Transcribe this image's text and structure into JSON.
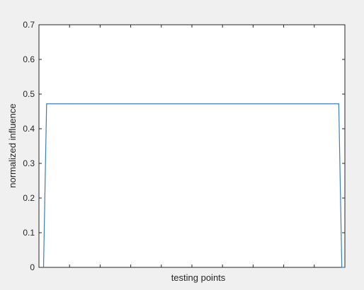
{
  "chart_data": {
    "type": "line",
    "title": "",
    "xlabel": "testing points",
    "ylabel": "normalized influence",
    "xlim": [
      0,
      100
    ],
    "ylim": [
      0,
      0.7
    ],
    "y_ticks": [
      "0",
      "0.1",
      "0.2",
      "0.3",
      "0.4",
      "0.5",
      "0.6",
      "0.7"
    ],
    "x_tick_count": 11,
    "grid": false,
    "legend": "none",
    "series": [
      {
        "color": "#3b7fb0",
        "x": [
          1.5,
          2.5,
          98,
          99,
          100
        ],
        "y": [
          0,
          0.472,
          0.472,
          0,
          0
        ]
      }
    ]
  }
}
